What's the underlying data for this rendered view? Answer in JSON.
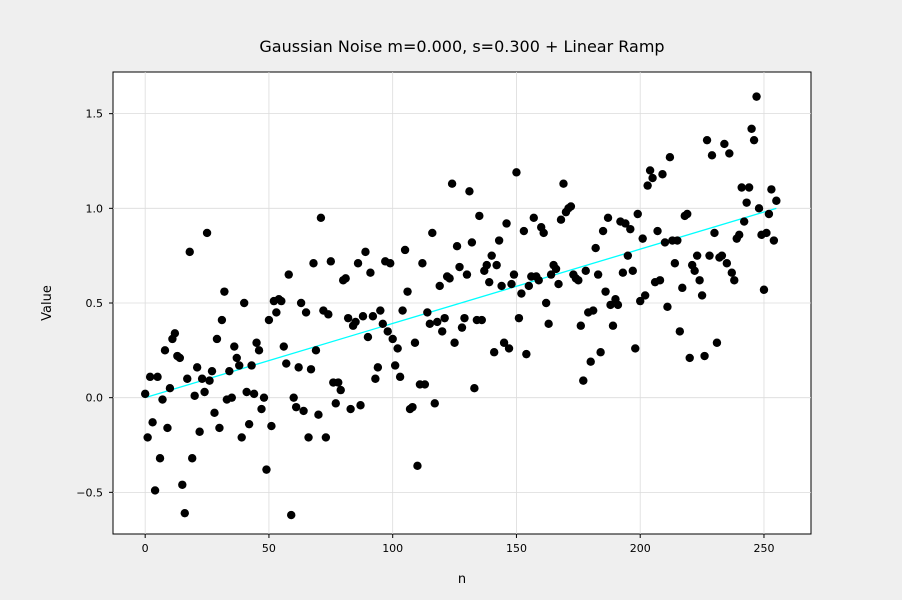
{
  "chart_data": {
    "type": "scatter",
    "title": "Gaussian Noise m=0.000, s=0.300 + Linear Ramp",
    "xlabel": "n",
    "ylabel": "Value",
    "xlim": [
      -13,
      269
    ],
    "ylim": [
      -0.72,
      1.72
    ],
    "xticks": [
      0,
      50,
      100,
      150,
      200,
      250
    ],
    "yticks": [
      -0.5,
      0.0,
      0.5,
      1.0,
      1.5
    ],
    "xtick_labels": [
      "0",
      "50",
      "100",
      "150",
      "200",
      "250"
    ],
    "ytick_labels": [
      "−0.5",
      "0.0",
      "0.5",
      "1.0",
      "1.5"
    ],
    "grid": true,
    "colors": {
      "background": "#efefef",
      "points": "#000000",
      "ramp": "#00ffff",
      "grid": "#dcdcdc"
    },
    "series": [
      {
        "type": "scatter",
        "y": [
          0.02,
          -0.21,
          0.11,
          -0.13,
          -0.49,
          0.11,
          -0.32,
          -0.01,
          0.25,
          -0.16,
          0.05,
          0.31,
          0.34,
          0.22,
          0.21,
          -0.46,
          -0.61,
          0.1,
          0.77,
          -0.32,
          0.01,
          0.16,
          -0.18,
          0.1,
          0.03,
          0.87,
          0.09,
          0.14,
          -0.08,
          0.31,
          -0.16,
          0.41,
          0.56,
          -0.01,
          0.14,
          0.0,
          0.27,
          0.21,
          0.17,
          -0.21,
          0.5,
          0.03,
          -0.14,
          0.17,
          0.02,
          0.29,
          0.25,
          -0.06,
          0.0,
          -0.38,
          0.41,
          -0.15,
          0.51,
          0.45,
          0.52,
          0.51,
          0.27,
          0.18,
          0.65,
          -0.62,
          0.0,
          -0.05,
          0.16,
          0.5,
          -0.07,
          0.45,
          -0.21,
          0.15,
          0.71,
          0.25,
          -0.09,
          0.95,
          0.46,
          -0.21,
          0.44,
          0.72,
          0.08,
          -0.03,
          0.08,
          0.04,
          0.62,
          0.63,
          0.42,
          -0.06,
          0.38,
          0.4,
          0.71,
          -0.04,
          0.43,
          0.77,
          0.32,
          0.66,
          0.43,
          0.1,
          0.16,
          0.46,
          0.39,
          0.72,
          0.35,
          0.71,
          0.31,
          0.17,
          0.26,
          0.11,
          0.46,
          0.78,
          0.56,
          -0.06,
          -0.05,
          0.29,
          -0.36,
          0.07,
          0.71,
          0.07,
          0.45,
          0.39,
          0.87,
          -0.03,
          0.4,
          0.59,
          0.35,
          0.42,
          0.64,
          0.63,
          1.13,
          0.29,
          0.8,
          0.69,
          0.37,
          0.42,
          0.65,
          1.09,
          0.82,
          0.05,
          0.41,
          0.96,
          0.41,
          0.67,
          0.7,
          0.61,
          0.75,
          0.24,
          0.7,
          0.83,
          0.59,
          0.29,
          0.92,
          0.26,
          0.6,
          0.65,
          1.19,
          0.42,
          0.55,
          0.88,
          0.23,
          0.59,
          0.64,
          0.95,
          0.64,
          0.62,
          0.9,
          0.87,
          0.5,
          0.39,
          0.65,
          0.7,
          0.68,
          0.6,
          0.94,
          1.13,
          0.98,
          1.0,
          1.01,
          0.65,
          0.63,
          0.62,
          0.38,
          0.09,
          0.67,
          0.45,
          0.19,
          0.46,
          0.79,
          0.65,
          0.24,
          0.88,
          0.56,
          0.95,
          0.49,
          0.38,
          0.52,
          0.49,
          0.93,
          0.66,
          0.92,
          0.75,
          0.89,
          0.67,
          0.26,
          0.97,
          0.51,
          0.84,
          0.54,
          1.12,
          1.2,
          1.16,
          0.61,
          0.88,
          0.62,
          1.18,
          0.82,
          0.48,
          1.27,
          0.83,
          0.71,
          0.83,
          0.35,
          0.58,
          0.96,
          0.97,
          0.21,
          0.7,
          0.67,
          0.75,
          0.62,
          0.54,
          0.22,
          1.36,
          0.75,
          1.28,
          0.87,
          0.29,
          0.74,
          0.75,
          1.34,
          0.71,
          1.29,
          0.66,
          0.62,
          0.84,
          0.86,
          1.11,
          0.93,
          1.03,
          1.11,
          1.42,
          1.36,
          1.59,
          1.0,
          0.86,
          0.57,
          0.87,
          0.97,
          1.1,
          0.83,
          1.04
        ]
      },
      {
        "type": "line",
        "x": [
          0,
          255
        ],
        "y": [
          0.0,
          1.0
        ]
      }
    ]
  }
}
